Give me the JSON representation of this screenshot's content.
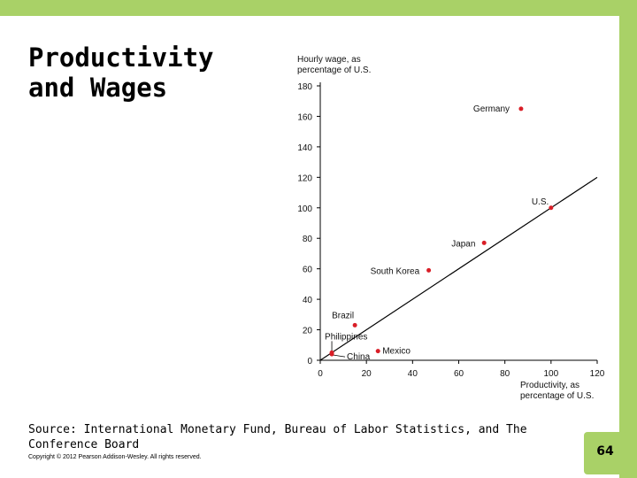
{
  "slide": {
    "title_line1": "Productivity",
    "title_line2": "and Wages",
    "source": "Source: International Monetary Fund, Bureau of Labor Statistics, and The Conference Board",
    "copyright": "Copyright © 2012 Pearson Addison-Wesley. All rights reserved.",
    "page_number": "64",
    "accent_color": "#a9d167"
  },
  "chart_data": {
    "type": "scatter",
    "ylabel": [
      "Hourly wage, as",
      "percentage of U.S."
    ],
    "xlabel": [
      "Productivity, as",
      "percentage of U.S."
    ],
    "xlim": [
      0,
      120
    ],
    "ylim": [
      0,
      180
    ],
    "x_ticks": [
      0,
      20,
      40,
      60,
      80,
      100,
      120
    ],
    "y_ticks": [
      0,
      20,
      40,
      60,
      80,
      100,
      120,
      140,
      160,
      180
    ],
    "trend_line": {
      "x": [
        0,
        120
      ],
      "y": [
        0,
        120
      ]
    },
    "points": [
      {
        "label": "Germany",
        "x": 87,
        "y": 165
      },
      {
        "label": "U.S.",
        "x": 100,
        "y": 100
      },
      {
        "label": "Japan",
        "x": 71,
        "y": 77
      },
      {
        "label": "South Korea",
        "x": 47,
        "y": 59
      },
      {
        "label": "Brazil",
        "x": 15,
        "y": 23
      },
      {
        "label": "Philippines",
        "x": 5,
        "y": 5
      },
      {
        "label": "China",
        "x": 5,
        "y": 4
      },
      {
        "label": "Mexico",
        "x": 25,
        "y": 6
      }
    ],
    "point_color": "#d91e27",
    "line_color": "#000000"
  }
}
